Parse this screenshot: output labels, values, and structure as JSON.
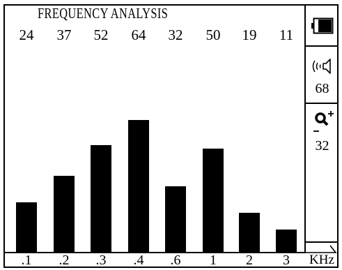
{
  "chart_data": {
    "type": "bar",
    "title": "FREQUENCY ANALYSIS",
    "categories": [
      ".1",
      ".2",
      ".3",
      ".4",
      ".6",
      "1",
      "2",
      "3"
    ],
    "values": [
      24,
      37,
      52,
      64,
      32,
      50,
      19,
      11
    ],
    "xlabel": "KHz",
    "ylabel": "",
    "ylim": [
      0,
      100
    ],
    "bar_color": "#000000"
  },
  "sidebar": {
    "battery_icon": "battery-icon",
    "sound_icon": "speaker-sound-icon",
    "volume_value": "68",
    "zoom_icon": "zoom-in-out-icon",
    "zoom_value": "32"
  },
  "colors": {
    "background": "#ffffff",
    "foreground": "#000000"
  }
}
